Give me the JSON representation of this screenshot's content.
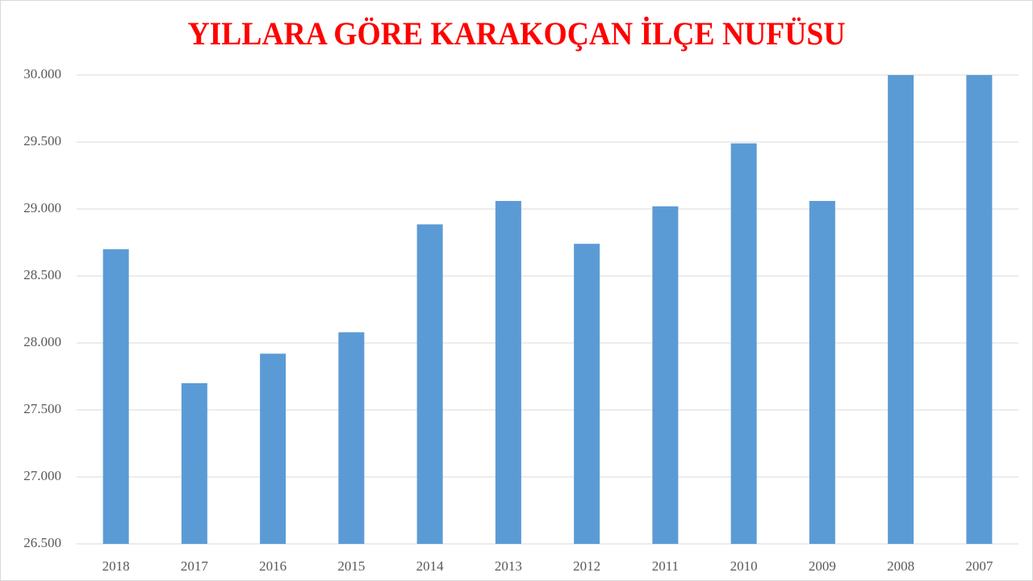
{
  "chart_data": {
    "type": "bar",
    "title": "YILLARA GÖRE KARAKOÇAN İLÇE NUFÜSU",
    "categories": [
      "2018",
      "2017",
      "2016",
      "2015",
      "2014",
      "2013",
      "2012",
      "2011",
      "2010",
      "2009",
      "2008",
      "2007"
    ],
    "values": [
      28700,
      27700,
      27920,
      28080,
      28885,
      29060,
      28740,
      29020,
      29490,
      29060,
      30000,
      30000
    ],
    "color": "#5b9bd5",
    "ylim": [
      26500,
      30000
    ],
    "yticks": [
      {
        "value": 26500,
        "label": "26.500"
      },
      {
        "value": 27000,
        "label": "27.000"
      },
      {
        "value": 27500,
        "label": "27.500"
      },
      {
        "value": 28000,
        "label": "28.000"
      },
      {
        "value": 28500,
        "label": "28.500"
      },
      {
        "value": 29000,
        "label": "29.000"
      },
      {
        "value": 29500,
        "label": "29.500"
      },
      {
        "value": 30000,
        "label": "30.000"
      }
    ],
    "grid": true
  }
}
